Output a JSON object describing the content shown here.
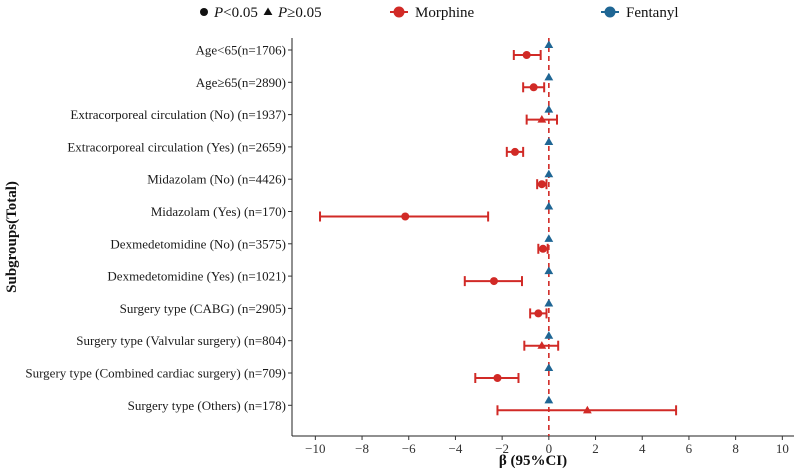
{
  "chart_data": {
    "type": "forest",
    "xlabel": "β (95%CI)",
    "ylabel": "Subgroups(Total)",
    "xlim": [
      -11,
      10.5
    ],
    "xticks": [
      -10,
      -8,
      -6,
      -4,
      -2,
      0,
      2,
      4,
      6,
      8,
      10
    ],
    "xtick_labels": [
      "−10",
      "−8",
      "−6",
      "−4",
      "−2",
      "0",
      "2",
      "4",
      "6",
      "8",
      "10"
    ],
    "reference_line": 0,
    "legend": {
      "shape_entries": [
        {
          "shape": "circle",
          "label_italic": "P",
          "label_rest": "<0.05"
        },
        {
          "shape": "triangle",
          "label_italic": "P",
          "label_rest": "≥0.05"
        }
      ],
      "series_entries": [
        {
          "name": "Morphine",
          "color": "#d12a26"
        },
        {
          "name": "Fentanyl",
          "color": "#1f6694"
        }
      ]
    },
    "subgroups": [
      "Age<65(n=1706)",
      "Age≥65(n=2890)",
      "Extracorporeal circulation (No) (n=1937)",
      "Extracorporeal circulation (Yes) (n=2659)",
      "Midazolam (No) (n=4426)",
      "Midazolam (Yes) (n=170)",
      "Dexmedetomidine (No) (n=3575)",
      "Dexmedetomidine (Yes) (n=1021)",
      "Surgery type (CABG) (n=2905)",
      "Surgery type (Valvular surgery) (n=804)",
      "Surgery type (Combined cardiac surgery) (n=709)",
      "Surgery type (Others) (n=178)"
    ],
    "series": [
      {
        "name": "Morphine",
        "color": "#d12a26",
        "beta": [
          -0.95,
          -0.65,
          -0.3,
          -1.45,
          -0.3,
          -6.15,
          -0.25,
          -2.35,
          -0.45,
          -0.3,
          -2.2,
          1.65
        ],
        "ci_low": [
          -1.5,
          -1.1,
          -0.95,
          -1.8,
          -0.5,
          -9.8,
          -0.45,
          -3.6,
          -0.8,
          -1.05,
          -3.15,
          -2.2
        ],
        "ci_high": [
          -0.35,
          -0.2,
          0.35,
          -1.1,
          -0.1,
          -2.6,
          -0.05,
          -1.15,
          -0.1,
          0.4,
          -1.3,
          5.45
        ],
        "p_below_05": [
          true,
          true,
          false,
          true,
          true,
          true,
          true,
          true,
          true,
          false,
          true,
          false
        ]
      },
      {
        "name": "Fentanyl",
        "color": "#1f6694",
        "beta": [
          0,
          0,
          0,
          0,
          0,
          0,
          0,
          0,
          0,
          0,
          0,
          0
        ],
        "ci_low": [
          0,
          0,
          0,
          0,
          0,
          0,
          0,
          0,
          0,
          0,
          0,
          0
        ],
        "ci_high": [
          0,
          0,
          0,
          0,
          0,
          0,
          0,
          0,
          0,
          0,
          0,
          0
        ],
        "p_below_05": [
          false,
          false,
          false,
          false,
          false,
          false,
          false,
          false,
          false,
          false,
          false,
          false
        ]
      }
    ]
  }
}
